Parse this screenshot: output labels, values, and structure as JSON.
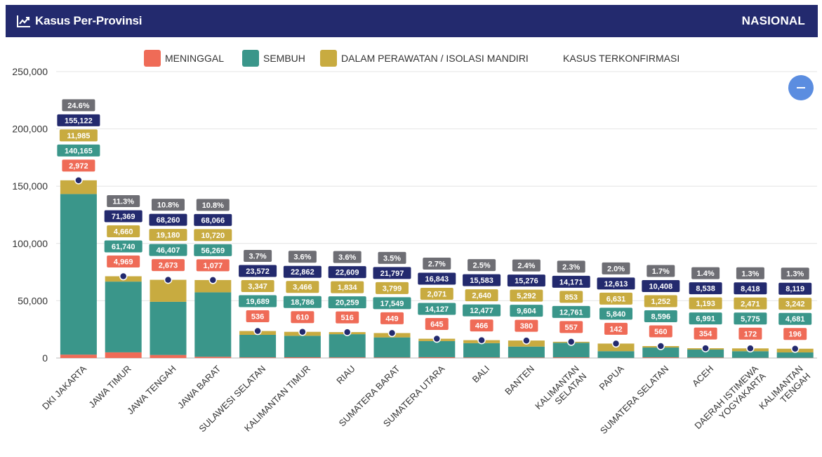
{
  "header": {
    "title": "Kasus Per-Provinsi",
    "scope": "NASIONAL",
    "icon": "line-chart-icon",
    "background": "#232a6e"
  },
  "legend": [
    {
      "key": "meninggal",
      "label": "MENINGGAL",
      "color": "#ef6b57"
    },
    {
      "key": "sembuh",
      "label": "SEMBUH",
      "color": "#3a968a"
    },
    {
      "key": "perawatan",
      "label": "DALAM PERAWATAN / ISOLASI MANDIRI",
      "color": "#c8ab40"
    },
    {
      "key": "terkonfirmasi",
      "label": "KASUS TERKONFIRMASI",
      "color": "#232a6e"
    }
  ],
  "collapse_button": {
    "icon": "minus-icon",
    "color": "#5b8de0"
  },
  "chart_data": {
    "type": "bar",
    "stacked": true,
    "categories": [
      "DKI JAKARTA",
      "JAWA TIMUR",
      "JAWA TENGAH",
      "JAWA BARAT",
      "SULAWESI SELATAN",
      "KALIMANTAN TIMUR",
      "RIAU",
      "SUMATERA BARAT",
      "SUMATERA UTARA",
      "BALI",
      "BANTEN",
      "KALIMANTAN SELATAN",
      "PAPUA",
      "SUMATERA SELATAN",
      "ACEH",
      "DAERAH ISTIMEWA YOGYAKARTA",
      "KALIMANTAN TENGAH"
    ],
    "series": [
      {
        "name": "MENINGGAL",
        "color": "#ef6b57",
        "values": [
          2972,
          4969,
          2673,
          1077,
          536,
          610,
          516,
          449,
          645,
          466,
          380,
          557,
          142,
          560,
          354,
          172,
          196
        ],
        "labels": [
          "2,972",
          "4,969",
          "2,673",
          "1,077",
          "536",
          "610",
          "516",
          "449",
          "645",
          "466",
          "380",
          "557",
          "142",
          "560",
          "354",
          "172",
          "196"
        ]
      },
      {
        "name": "SEMBUH",
        "color": "#3a968a",
        "values": [
          140165,
          61740,
          46407,
          56269,
          19689,
          18786,
          20259,
          17549,
          14127,
          12477,
          9604,
          12761,
          5840,
          8596,
          6991,
          5775,
          4681
        ],
        "labels": [
          "140,165",
          "61,740",
          "46,407",
          "56,269",
          "19,689",
          "18,786",
          "20,259",
          "17,549",
          "14,127",
          "12,477",
          "9,604",
          "12,761",
          "5,840",
          "8,596",
          "6,991",
          "5,775",
          "4,681"
        ]
      },
      {
        "name": "DALAM PERAWATAN / ISOLASI MANDIRI",
        "color": "#c8ab40",
        "values": [
          11985,
          4660,
          19180,
          10720,
          3347,
          3466,
          1834,
          3799,
          2071,
          2640,
          5292,
          853,
          6631,
          1252,
          1193,
          2471,
          3242
        ],
        "labels": [
          "11,985",
          "4,660",
          "19,180",
          "10,720",
          "3,347",
          "3,466",
          "1,834",
          "3,799",
          "2,071",
          "2,640",
          "5,292",
          "853",
          "6,631",
          "1,252",
          "1,193",
          "2,471",
          "3,242"
        ]
      }
    ],
    "confirmed": {
      "name": "KASUS TERKONFIRMASI",
      "color": "#232a6e",
      "values": [
        155122,
        71369,
        68260,
        68066,
        23572,
        22862,
        22609,
        21797,
        16843,
        15583,
        15276,
        14171,
        12613,
        10408,
        8538,
        8418,
        8119
      ],
      "labels": [
        "155,122",
        "71,369",
        "68,260",
        "68,066",
        "23,572",
        "22,862",
        "22,609",
        "21,797",
        "16,843",
        "15,583",
        "15,276",
        "14,171",
        "12,613",
        "10,408",
        "8,538",
        "8,418",
        "8,119"
      ]
    },
    "percent": {
      "color": "#6e6e74",
      "labels": [
        "24.6%",
        "11.3%",
        "10.8%",
        "10.8%",
        "3.7%",
        "3.6%",
        "3.6%",
        "3.5%",
        "2.7%",
        "2.5%",
        "2.4%",
        "2.3%",
        "2.0%",
        "1.7%",
        "1.4%",
        "1.3%",
        "1.3%"
      ]
    },
    "yticks": [
      "0",
      "50,000",
      "100,000",
      "150,000",
      "200,000",
      "250,000"
    ],
    "ylim": [
      0,
      250000
    ],
    "grid": true,
    "legend_position": "top"
  }
}
